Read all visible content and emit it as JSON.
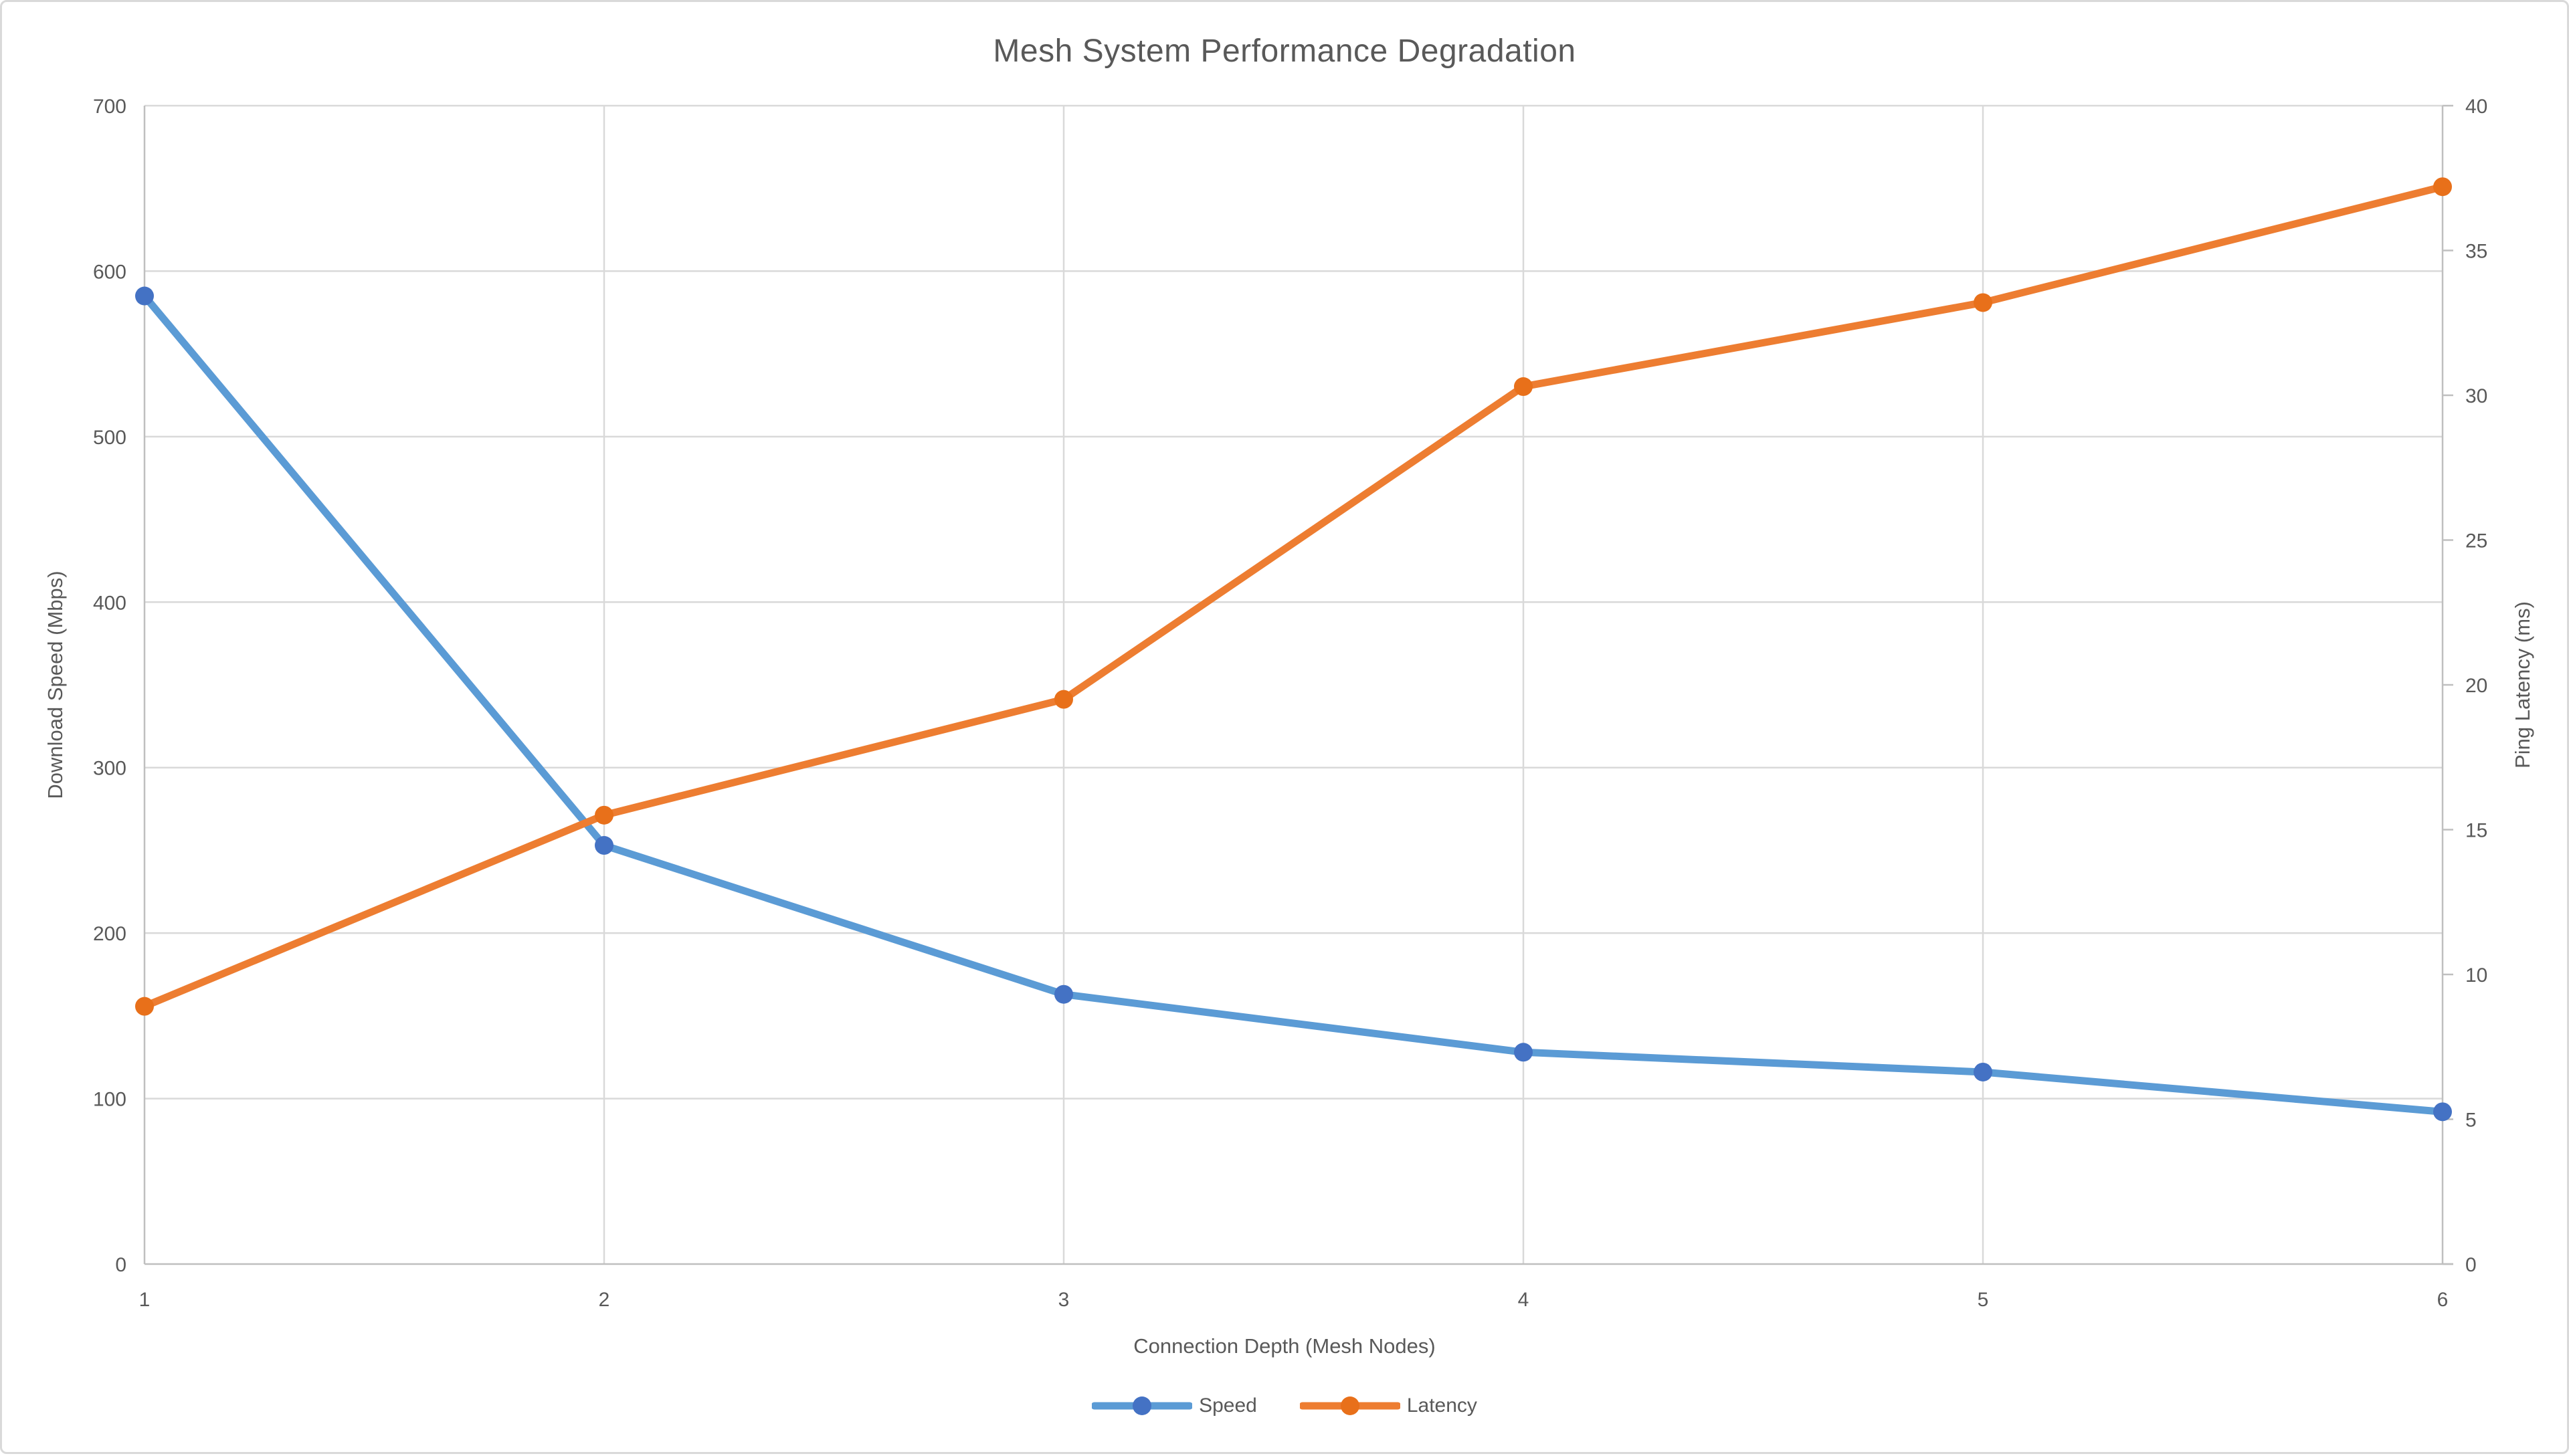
{
  "chart_data": {
    "type": "line",
    "title": "Mesh System Performance Degradation",
    "xlabel": "Connection Depth (Mesh Nodes)",
    "ylabel_left": "Download Speed (Mbps)",
    "ylabel_right": "Ping Latency (ms)",
    "categories": [
      1,
      2,
      3,
      4,
      5,
      6
    ],
    "series": [
      {
        "name": "Speed",
        "axis": "left",
        "values": [
          585,
          253,
          163,
          128,
          116,
          92
        ],
        "line_color": "#5B9BD5",
        "marker_color": "#4472C4"
      },
      {
        "name": "Latency",
        "axis": "right",
        "values": [
          8.9,
          15.5,
          19.5,
          30.3,
          33.2,
          37.2
        ],
        "line_color": "#ED7D31",
        "marker_color": "#E8701A"
      }
    ],
    "y_left": {
      "min": 0,
      "max": 700,
      "step": 100
    },
    "y_right": {
      "min": 0,
      "max": 40,
      "step": 5
    },
    "y_left_ticks": [
      0,
      100,
      200,
      300,
      400,
      500,
      600,
      700
    ],
    "y_right_ticks": [
      0,
      5,
      10,
      15,
      20,
      25,
      30,
      35,
      40
    ],
    "grid": true,
    "legend_position": "bottom"
  },
  "colors": {
    "gridline": "#D9D9D9",
    "axis_line": "#BFBFBF",
    "text": "#595959",
    "background": "#FFFFFF",
    "card_border": "#D9D9D9"
  }
}
